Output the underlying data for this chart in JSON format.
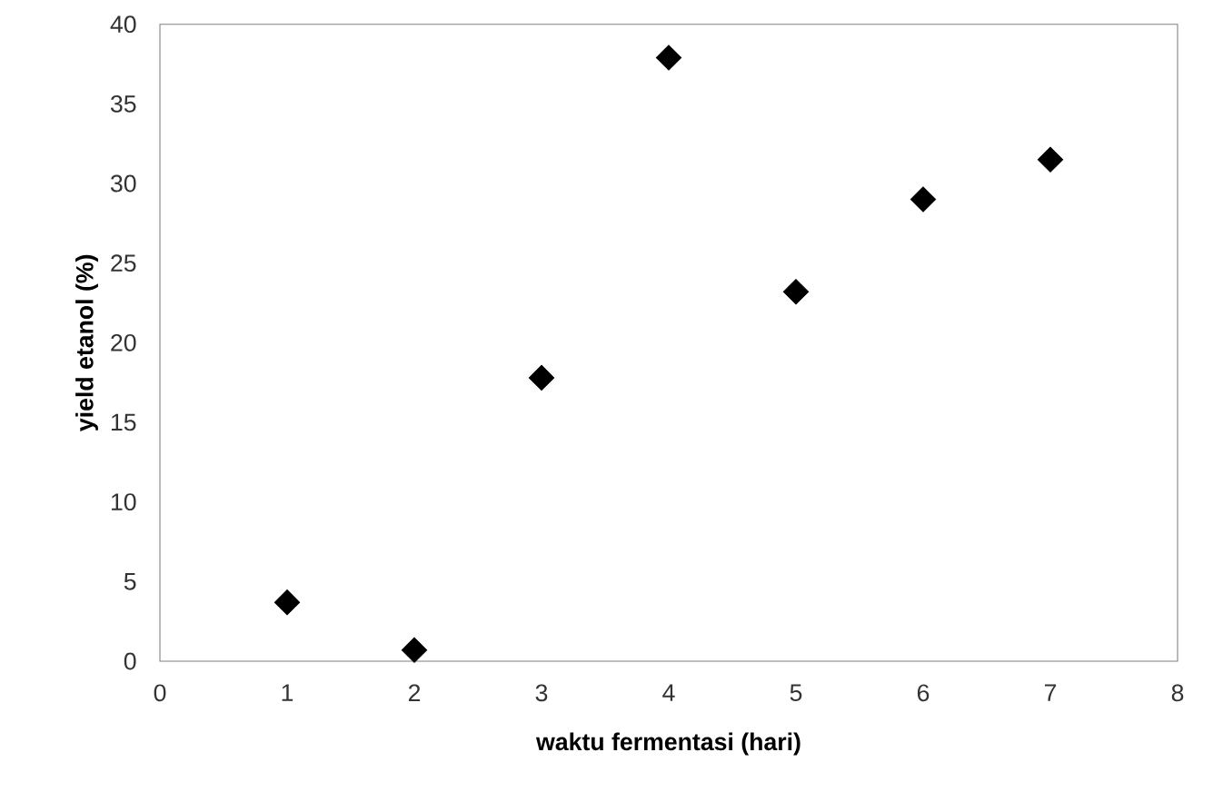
{
  "chart_data": {
    "type": "scatter",
    "xlabel": "waktu fermentasi (hari)",
    "ylabel": "yield etanol (%)",
    "x": [
      1,
      2,
      3,
      4,
      5,
      6,
      7
    ],
    "series": [
      {
        "color": "#000000",
        "values": [
          3.7,
          0.7,
          17.8,
          37.9,
          23.2,
          29.0,
          31.5
        ]
      }
    ],
    "xlim": [
      0,
      8
    ],
    "ylim": [
      0,
      40
    ],
    "xticks": [
      0,
      1,
      2,
      3,
      4,
      5,
      6,
      7,
      8
    ],
    "yticks": [
      0,
      5,
      10,
      15,
      20,
      25,
      30,
      35,
      40
    ],
    "marker": "diamond",
    "grid": false
  }
}
